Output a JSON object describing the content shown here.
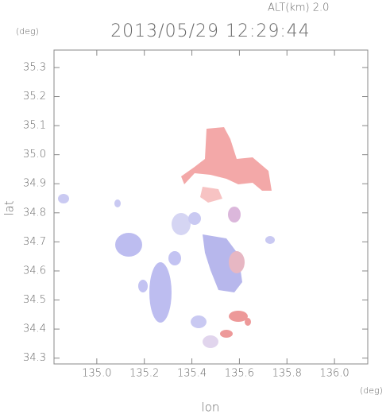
{
  "chart_data": {
    "type": "map",
    "title": "2013/05/29 12:29:44",
    "annotation": "ALT(km) 2.0",
    "xlabel": "lon",
    "ylabel": "lat",
    "xunit": "(deg)",
    "yunit": "(deg)",
    "xlim": [
      134.82,
      136.14
    ],
    "ylim": [
      34.28,
      35.36
    ],
    "xticks": [
      {
        "value": 135,
        "label": "135.0"
      },
      135.2,
      135.4,
      135.6,
      135.8,
      {
        "value": 136,
        "label": "136.0"
      }
    ],
    "yticks": [
      34.3,
      34.4,
      34.5,
      34.6,
      34.7,
      34.8,
      34.9,
      {
        "value": 35,
        "label": "35.0"
      },
      35.1,
      35.2,
      35.3
    ]
  }
}
